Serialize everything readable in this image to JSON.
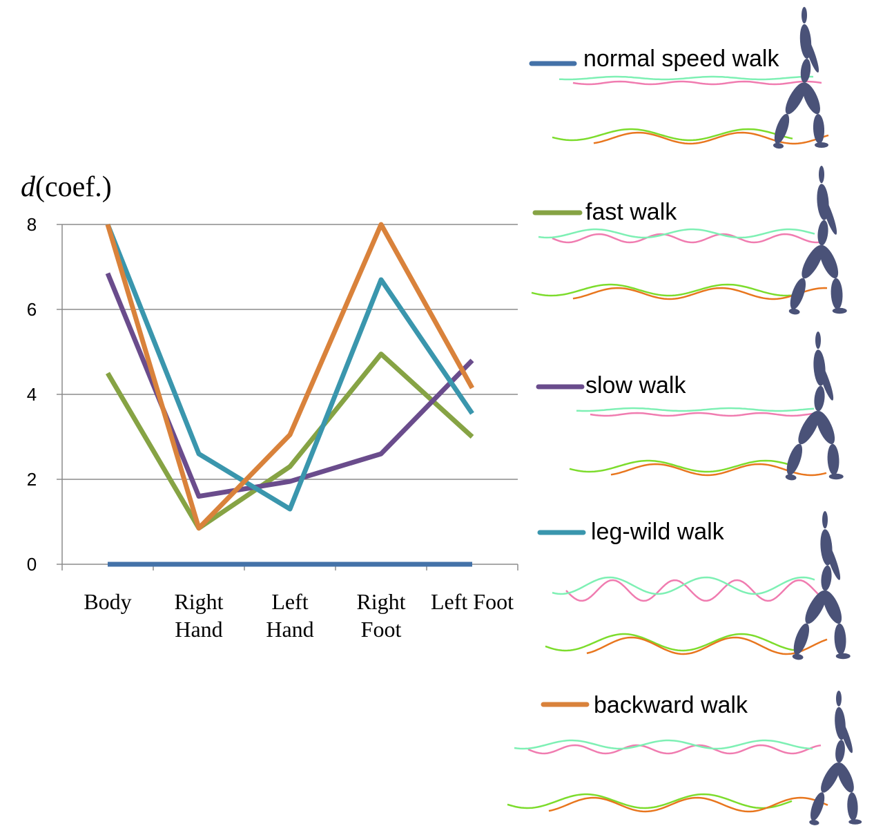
{
  "chart_data": {
    "type": "line",
    "ylabel_var": "d",
    "ylabel_rest": "(coef.)",
    "categories": [
      [
        "Body"
      ],
      [
        "Right",
        "Hand"
      ],
      [
        "Left",
        "Hand"
      ],
      [
        "Right",
        "Foot"
      ],
      [
        "Left Foot"
      ]
    ],
    "ylim": [
      0,
      8
    ],
    "yticks": [
      "0",
      "2",
      "4",
      "6",
      "8"
    ],
    "grid": true,
    "series": [
      {
        "name": "normal speed walk",
        "color": "#4472a8",
        "values": [
          0,
          0,
          0,
          0,
          0
        ]
      },
      {
        "name": "fast walk",
        "color": "#86a344",
        "values": [
          4.5,
          0.85,
          2.3,
          4.95,
          3.0
        ]
      },
      {
        "name": "slow walk",
        "color": "#6a4c8c",
        "values": [
          6.85,
          1.6,
          1.95,
          2.6,
          4.8
        ]
      },
      {
        "name": "leg-wild walk",
        "color": "#3a96ad",
        "values": [
          8.0,
          2.6,
          1.3,
          6.7,
          3.55
        ]
      },
      {
        "name": "backward walk",
        "color": "#d9823b",
        "values": [
          8.0,
          0.85,
          3.05,
          8.0,
          4.15
        ]
      }
    ]
  },
  "figures": {
    "trail_colors": {
      "pink": "#f07cb0",
      "mint": "#7ef0b4",
      "green": "#7cdc2c",
      "orange": "#e8761e",
      "figure": "#4a5278"
    }
  }
}
